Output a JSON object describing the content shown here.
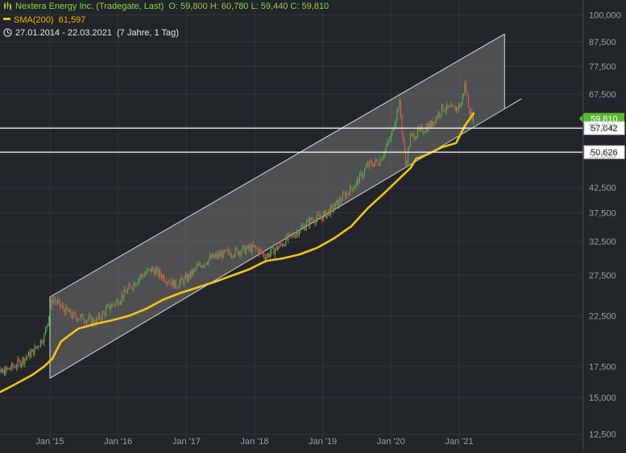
{
  "header": {
    "title": "Nextera Energy Inc. (Tradegate, Last)",
    "ohlc": "O: 59,800  H: 60,780  L: 59,440  C: 59,810",
    "sma_label": "SMA(200)",
    "sma_value": "61,597",
    "date_range": "27.01.2014 - 22.03.2021",
    "date_note": "(7 Jahre, 1 Tag)"
  },
  "colors": {
    "background": "#222529",
    "candle_up": "#4caf50",
    "candle_down": "#e05050",
    "sma": "#f0c419",
    "channel_fill": "#7a7a7a",
    "hline": "#ffffff",
    "last_price_bg": "#5cb82f"
  },
  "chart_data": {
    "type": "line",
    "scale": "log",
    "ylim": [
      12500,
      100000
    ],
    "xlim": [
      "2014-01-27",
      "2021-03-22"
    ],
    "y_ticks": [
      12500,
      15000,
      17500,
      22500,
      27500,
      32500,
      37500,
      42500,
      50000,
      57500,
      67500,
      77500,
      87500,
      100000
    ],
    "y_tick_labels": [
      "12,500",
      "15,000",
      "17,500",
      "22,500",
      "27,500",
      "32,500",
      "37,500",
      "42,500",
      "50,000",
      "57,500",
      "67,500",
      "77,500",
      "87,500",
      "100,000"
    ],
    "x_ticks": [
      "2015-01-01",
      "2016-01-01",
      "2017-01-01",
      "2018-01-01",
      "2019-01-01",
      "2020-01-01",
      "2021-01-01"
    ],
    "x_tick_labels": [
      "Jan '15",
      "Jan '16",
      "Jan '17",
      "Jan '18",
      "Jan '19",
      "Jan '20",
      "Jan '21"
    ],
    "series": [
      {
        "name": "Nextera Energy Inc. (Tradegate, Last)",
        "style": "candlestick",
        "x": [
          "2014-01-27",
          "2014-04-01",
          "2014-07-01",
          "2014-10-01",
          "2014-12-01",
          "2015-01-15",
          "2015-03-01",
          "2015-05-01",
          "2015-07-01",
          "2015-09-01",
          "2015-11-01",
          "2016-01-01",
          "2016-03-01",
          "2016-05-01",
          "2016-07-01",
          "2016-09-01",
          "2016-11-01",
          "2017-01-01",
          "2017-03-01",
          "2017-05-01",
          "2017-07-01",
          "2017-09-01",
          "2017-11-01",
          "2018-01-01",
          "2018-03-01",
          "2018-05-01",
          "2018-07-01",
          "2018-09-01",
          "2018-11-01",
          "2019-01-01",
          "2019-03-01",
          "2019-05-01",
          "2019-07-01",
          "2019-09-01",
          "2019-11-01",
          "2020-01-01",
          "2020-02-15",
          "2020-03-20",
          "2020-04-15",
          "2020-06-01",
          "2020-08-01",
          "2020-10-01",
          "2020-12-01",
          "2021-01-10",
          "2021-02-01",
          "2021-03-01",
          "2021-03-22"
        ],
        "values": [
          15700,
          16800,
          17600,
          18800,
          20300,
          24500,
          23500,
          22500,
          22200,
          21800,
          23200,
          24300,
          25800,
          27400,
          28300,
          27300,
          26200,
          27000,
          28600,
          29800,
          30400,
          30800,
          31200,
          31500,
          30200,
          31500,
          33000,
          34500,
          36200,
          36800,
          38500,
          41000,
          43500,
          47500,
          48500,
          54500,
          65000,
          47500,
          54500,
          56000,
          58000,
          63000,
          62500,
          64000,
          71000,
          61000,
          59810
        ]
      },
      {
        "name": "SMA(200)",
        "style": "line",
        "x": [
          "2014-01-27",
          "2014-06-01",
          "2014-10-01",
          "2014-12-01",
          "2015-01-15",
          "2015-03-01",
          "2015-06-01",
          "2015-09-01",
          "2015-12-01",
          "2016-03-01",
          "2016-06-01",
          "2016-09-01",
          "2016-12-01",
          "2017-06-01",
          "2017-12-01",
          "2018-03-01",
          "2018-06-01",
          "2018-09-01",
          "2018-12-01",
          "2019-03-01",
          "2019-06-01",
          "2019-09-01",
          "2019-12-01",
          "2020-03-01",
          "2020-04-15",
          "2020-05-15",
          "2020-07-01",
          "2020-10-01",
          "2020-12-15",
          "2021-02-01",
          "2021-03-22"
        ],
        "values": [
          14900,
          15800,
          16800,
          17500,
          18200,
          19800,
          21100,
          21600,
          22000,
          22500,
          23300,
          24400,
          25200,
          26600,
          28300,
          29500,
          29900,
          30500,
          31500,
          33000,
          35000,
          38400,
          41500,
          45000,
          46800,
          49000,
          49800,
          51900,
          53000,
          57800,
          61597
        ]
      }
    ],
    "channel": {
      "upper": [
        {
          "x": "2015-01-01",
          "y": 24700
        },
        {
          "x": "2021-09-01",
          "y": 91000
        }
      ],
      "lower": [
        {
          "x": "2015-01-01",
          "y": 16500
        },
        {
          "x": "2021-09-01",
          "y": 63000
        }
      ],
      "lower_extension_end": {
        "x": "2021-12-01",
        "y": 66000
      }
    },
    "horizontal_lines": [
      {
        "value": 57042,
        "label": "57,042"
      },
      {
        "value": 50626,
        "label": "50,626"
      }
    ],
    "last_price": {
      "value": 59810,
      "label": "59,810"
    }
  }
}
